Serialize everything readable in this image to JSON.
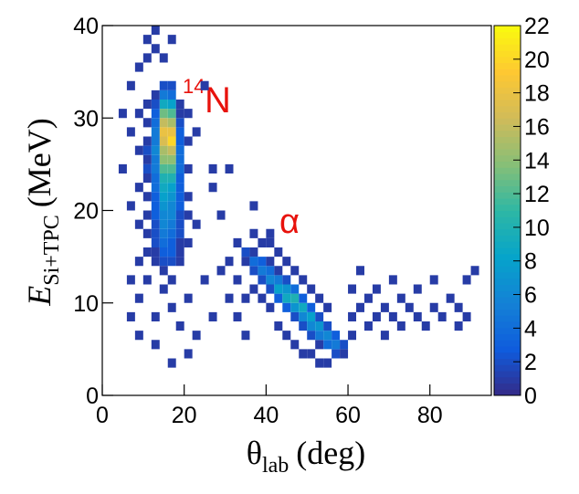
{
  "chart_data": {
    "type": "heatmap",
    "x_label": {
      "symbol": "θ",
      "subscript": "lab",
      "unit": "(deg)"
    },
    "y_label": {
      "symbol": "E",
      "subscript": "Si+TPC",
      "unit": "(MeV)"
    },
    "annotations": [
      {
        "superscript": "14",
        "text": "N",
        "color": "#e8120c"
      },
      {
        "text": "α",
        "color": "#e8120c"
      }
    ],
    "xlim": [
      0,
      95
    ],
    "ylim": [
      0,
      40
    ],
    "zlim": [
      0,
      22
    ],
    "xticks": [
      0,
      20,
      40,
      60,
      80
    ],
    "yticks": [
      0,
      10,
      20,
      30,
      40
    ],
    "zticks": [
      0,
      2,
      4,
      6,
      8,
      10,
      12,
      14,
      16,
      18,
      20,
      22
    ],
    "xbins": [
      0,
      2,
      4,
      6,
      8,
      10,
      12,
      14,
      16,
      18,
      20,
      22,
      24,
      26,
      28,
      30,
      32,
      34,
      36,
      38,
      40,
      42,
      44,
      46,
      48,
      50,
      52,
      54,
      56,
      58,
      60,
      62,
      64,
      66,
      68,
      70,
      72,
      74,
      76,
      78,
      80,
      82,
      84,
      86,
      88,
      90,
      92,
      94
    ],
    "ybins": [
      0,
      1,
      2,
      3,
      4,
      5,
      6,
      7,
      8,
      9,
      10,
      11,
      12,
      13,
      14,
      15,
      16,
      17,
      18,
      19,
      20,
      21,
      22,
      23,
      24,
      25,
      26,
      27,
      28,
      29,
      30,
      31,
      32,
      33,
      34,
      35,
      36,
      37,
      38,
      39,
      40
    ],
    "colors": [
      "#352a87",
      "#0f5cdd",
      "#1481d6",
      "#06a4ca",
      "#2eb7a4",
      "#87bf77",
      "#d1bb59",
      "#fec832",
      "#f9fb0e"
    ],
    "cells": [
      [
        14,
        14,
        2
      ],
      [
        14,
        15,
        3
      ],
      [
        14,
        16,
        4
      ],
      [
        14,
        17,
        5
      ],
      [
        14,
        18,
        6
      ],
      [
        14,
        19,
        6
      ],
      [
        14,
        20,
        7
      ],
      [
        14,
        21,
        8
      ],
      [
        14,
        22,
        9
      ],
      [
        14,
        23,
        10
      ],
      [
        14,
        24,
        12
      ],
      [
        14,
        25,
        14
      ],
      [
        14,
        26,
        15
      ],
      [
        14,
        27,
        17
      ],
      [
        14,
        28,
        18
      ],
      [
        14,
        29,
        16
      ],
      [
        14,
        30,
        13
      ],
      [
        14,
        31,
        9
      ],
      [
        14,
        32,
        5
      ],
      [
        14,
        33,
        2
      ],
      [
        16,
        14,
        2
      ],
      [
        16,
        15,
        3
      ],
      [
        16,
        16,
        3
      ],
      [
        16,
        17,
        4
      ],
      [
        16,
        18,
        5
      ],
      [
        16,
        19,
        6
      ],
      [
        16,
        20,
        6
      ],
      [
        16,
        21,
        7
      ],
      [
        16,
        22,
        8
      ],
      [
        16,
        23,
        10
      ],
      [
        16,
        24,
        12
      ],
      [
        16,
        25,
        14
      ],
      [
        16,
        26,
        16
      ],
      [
        16,
        27,
        20
      ],
      [
        16,
        28,
        18
      ],
      [
        16,
        29,
        15
      ],
      [
        16,
        30,
        12
      ],
      [
        16,
        31,
        8
      ],
      [
        16,
        32,
        4
      ],
      [
        16,
        33,
        2
      ],
      [
        12,
        14,
        1
      ],
      [
        12,
        15,
        1
      ],
      [
        12,
        16,
        2
      ],
      [
        12,
        17,
        2
      ],
      [
        12,
        18,
        2
      ],
      [
        12,
        19,
        3
      ],
      [
        12,
        20,
        3
      ],
      [
        12,
        21,
        3
      ],
      [
        12,
        22,
        4
      ],
      [
        12,
        23,
        4
      ],
      [
        12,
        24,
        5
      ],
      [
        12,
        25,
        5
      ],
      [
        12,
        26,
        6
      ],
      [
        12,
        27,
        5
      ],
      [
        12,
        28,
        5
      ],
      [
        12,
        29,
        4
      ],
      [
        12,
        30,
        3
      ],
      [
        12,
        31,
        2
      ],
      [
        12,
        32,
        1
      ],
      [
        18,
        14,
        1
      ],
      [
        18,
        15,
        1
      ],
      [
        18,
        16,
        1
      ],
      [
        18,
        17,
        2
      ],
      [
        18,
        18,
        2
      ],
      [
        18,
        19,
        2
      ],
      [
        18,
        20,
        3
      ],
      [
        18,
        21,
        3
      ],
      [
        18,
        22,
        3
      ],
      [
        18,
        23,
        3
      ],
      [
        18,
        24,
        4
      ],
      [
        18,
        25,
        4
      ],
      [
        18,
        26,
        4
      ],
      [
        18,
        27,
        3
      ],
      [
        18,
        28,
        3
      ],
      [
        18,
        29,
        2
      ],
      [
        18,
        30,
        1
      ],
      [
        18,
        31,
        1
      ],
      [
        10,
        12,
        1
      ],
      [
        10,
        15,
        1
      ],
      [
        10,
        17,
        1
      ],
      [
        10,
        19,
        1
      ],
      [
        10,
        21,
        1
      ],
      [
        10,
        23,
        1
      ],
      [
        10,
        24,
        2
      ],
      [
        10,
        25,
        1
      ],
      [
        10,
        26,
        2
      ],
      [
        10,
        27,
        1
      ],
      [
        10,
        29,
        1
      ],
      [
        10,
        31,
        1
      ],
      [
        10,
        36,
        1
      ],
      [
        10,
        38,
        1
      ],
      [
        20,
        16,
        1
      ],
      [
        20,
        19,
        1
      ],
      [
        20,
        21,
        1
      ],
      [
        20,
        24,
        1
      ],
      [
        20,
        27,
        1
      ],
      [
        20,
        30,
        1
      ],
      [
        20,
        10,
        1
      ],
      [
        20,
        4,
        1
      ],
      [
        8,
        6,
        1
      ],
      [
        8,
        10,
        1
      ],
      [
        8,
        14,
        1
      ],
      [
        8,
        18,
        1
      ],
      [
        8,
        22,
        1
      ],
      [
        8,
        26,
        1
      ],
      [
        8,
        30,
        1
      ],
      [
        8,
        35,
        1
      ],
      [
        6,
        8,
        1
      ],
      [
        6,
        12,
        1
      ],
      [
        6,
        20,
        1
      ],
      [
        6,
        28,
        1
      ],
      [
        6,
        33,
        1
      ],
      [
        4,
        24,
        1
      ],
      [
        4,
        30,
        1
      ],
      [
        12,
        37,
        1
      ],
      [
        12,
        39,
        1
      ],
      [
        14,
        36,
        1
      ],
      [
        16,
        38,
        1
      ],
      [
        12,
        8,
        1
      ],
      [
        12,
        5,
        1
      ],
      [
        14,
        11,
        1
      ],
      [
        14,
        13,
        1
      ],
      [
        16,
        12,
        1
      ],
      [
        16,
        9,
        1
      ],
      [
        16,
        3,
        1
      ],
      [
        18,
        7,
        1
      ],
      [
        22,
        28,
        1
      ],
      [
        22,
        18,
        1
      ],
      [
        22,
        6,
        1
      ],
      [
        24,
        33,
        1
      ],
      [
        24,
        12,
        1
      ],
      [
        26,
        22,
        1
      ],
      [
        26,
        8,
        1
      ],
      [
        26,
        24,
        1
      ],
      [
        28,
        19,
        1
      ],
      [
        28,
        13,
        1
      ],
      [
        30,
        24,
        1
      ],
      [
        30,
        14,
        1
      ],
      [
        30,
        10,
        1
      ],
      [
        32,
        12,
        1
      ],
      [
        32,
        8,
        1
      ],
      [
        32,
        16,
        1
      ],
      [
        34,
        14,
        1
      ],
      [
        34,
        15,
        2
      ],
      [
        34,
        10,
        1
      ],
      [
        34,
        6,
        1
      ],
      [
        36,
        13,
        2
      ],
      [
        36,
        14,
        4
      ],
      [
        36,
        15,
        1
      ],
      [
        36,
        11,
        1
      ],
      [
        36,
        17,
        1
      ],
      [
        36,
        20,
        1
      ],
      [
        38,
        12,
        2
      ],
      [
        38,
        13,
        5
      ],
      [
        38,
        14,
        3
      ],
      [
        38,
        10,
        1
      ],
      [
        38,
        16,
        1
      ],
      [
        40,
        11,
        2
      ],
      [
        40,
        12,
        6
      ],
      [
        40,
        13,
        4
      ],
      [
        40,
        14,
        1
      ],
      [
        40,
        9,
        1
      ],
      [
        40,
        16,
        1
      ],
      [
        40,
        17,
        1
      ],
      [
        42,
        10,
        3
      ],
      [
        42,
        11,
        8
      ],
      [
        42,
        12,
        5
      ],
      [
        42,
        13,
        1
      ],
      [
        42,
        7,
        1
      ],
      [
        42,
        15,
        1
      ],
      [
        44,
        9,
        3
      ],
      [
        44,
        10,
        9
      ],
      [
        44,
        11,
        7
      ],
      [
        44,
        12,
        2
      ],
      [
        44,
        6,
        1
      ],
      [
        44,
        14,
        1
      ],
      [
        46,
        8,
        2
      ],
      [
        46,
        9,
        7
      ],
      [
        46,
        10,
        10
      ],
      [
        46,
        11,
        4
      ],
      [
        46,
        5,
        1
      ],
      [
        46,
        13,
        1
      ],
      [
        48,
        7,
        2
      ],
      [
        48,
        8,
        6
      ],
      [
        48,
        9,
        9
      ],
      [
        48,
        10,
        3
      ],
      [
        48,
        4,
        1
      ],
      [
        48,
        12,
        1
      ],
      [
        50,
        6,
        2
      ],
      [
        50,
        7,
        6
      ],
      [
        50,
        8,
        8
      ],
      [
        50,
        9,
        3
      ],
      [
        50,
        4,
        1
      ],
      [
        50,
        11,
        1
      ],
      [
        52,
        5,
        1
      ],
      [
        52,
        6,
        5
      ],
      [
        52,
        7,
        7
      ],
      [
        52,
        8,
        2
      ],
      [
        52,
        3,
        1
      ],
      [
        52,
        10,
        1
      ],
      [
        54,
        5,
        4
      ],
      [
        54,
        6,
        6
      ],
      [
        54,
        7,
        2
      ],
      [
        54,
        3,
        1
      ],
      [
        54,
        9,
        1
      ],
      [
        56,
        4,
        2
      ],
      [
        56,
        5,
        5
      ],
      [
        56,
        6,
        3
      ],
      [
        58,
        4,
        1
      ],
      [
        58,
        5,
        2
      ],
      [
        60,
        8,
        1
      ],
      [
        60,
        11,
        1
      ],
      [
        60,
        6,
        1
      ],
      [
        62,
        9,
        1
      ],
      [
        62,
        13,
        1
      ],
      [
        64,
        7,
        1
      ],
      [
        64,
        10,
        1
      ],
      [
        66,
        11,
        1
      ],
      [
        66,
        8,
        1
      ],
      [
        68,
        9,
        1
      ],
      [
        68,
        6,
        1
      ],
      [
        70,
        12,
        1
      ],
      [
        70,
        8,
        1
      ],
      [
        72,
        10,
        1
      ],
      [
        72,
        7,
        1
      ],
      [
        74,
        9,
        1
      ],
      [
        76,
        11,
        1
      ],
      [
        76,
        8,
        1
      ],
      [
        78,
        7,
        1
      ],
      [
        80,
        9,
        1
      ],
      [
        80,
        12,
        1
      ],
      [
        82,
        8,
        1
      ],
      [
        84,
        10,
        1
      ],
      [
        86,
        7,
        1
      ],
      [
        86,
        9,
        1
      ],
      [
        88,
        8,
        1
      ],
      [
        88,
        12,
        1
      ],
      [
        90,
        13,
        1
      ]
    ]
  }
}
